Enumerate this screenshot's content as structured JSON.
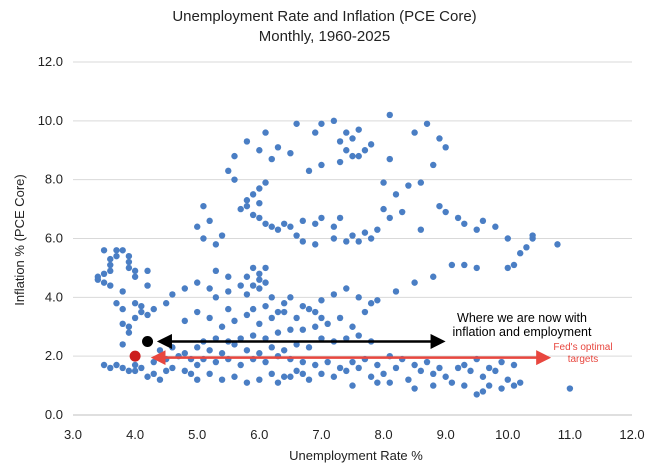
{
  "chart_data": {
    "type": "scatter",
    "title": "Unemployment Rate and Inflation (PCE Core)",
    "subtitle": "Monthly, 1960-2025",
    "xlabel": "Unemployment Rate %",
    "ylabel": "Inflation % (PCE Core)",
    "xlim": [
      3.0,
      12.0
    ],
    "ylim": [
      0.0,
      12.0
    ],
    "x_ticks": [
      "3.0",
      "4.0",
      "5.0",
      "6.0",
      "7.0",
      "8.0",
      "9.0",
      "10.0",
      "11.0",
      "12.0"
    ],
    "y_ticks": [
      "0.0",
      "2.0",
      "4.0",
      "6.0",
      "8.0",
      "10.0",
      "12.0"
    ],
    "grid": "horizontal",
    "colors": {
      "points": "#4a7ec4",
      "current": "#000000",
      "target": "#cc1f1f",
      "target_arrow": "#e8473f",
      "text": "#222222",
      "grid": "#d9d9d9"
    },
    "series": [
      {
        "name": "Monthly observations",
        "points": [
          [
            3.4,
            4.7
          ],
          [
            3.4,
            4.6
          ],
          [
            3.5,
            4.8
          ],
          [
            3.5,
            4.5
          ],
          [
            3.5,
            5.6
          ],
          [
            3.6,
            5.3
          ],
          [
            3.6,
            5.1
          ],
          [
            3.6,
            4.9
          ],
          [
            3.6,
            4.4
          ],
          [
            3.7,
            5.4
          ],
          [
            3.7,
            5.6
          ],
          [
            3.8,
            5.6
          ],
          [
            3.9,
            5.4
          ],
          [
            3.9,
            5.2
          ],
          [
            3.9,
            5.0
          ],
          [
            3.8,
            4.2
          ],
          [
            3.7,
            3.8
          ],
          [
            3.8,
            3.6
          ],
          [
            3.8,
            3.1
          ],
          [
            3.9,
            3.0
          ],
          [
            3.9,
            2.8
          ],
          [
            3.8,
            2.4
          ],
          [
            4.0,
            3.3
          ],
          [
            4.1,
            3.5
          ],
          [
            4.0,
            4.9
          ],
          [
            4.0,
            4.7
          ],
          [
            4.2,
            4.9
          ],
          [
            4.2,
            4.4
          ],
          [
            3.5,
            1.7
          ],
          [
            3.6,
            1.6
          ],
          [
            3.7,
            1.7
          ],
          [
            3.8,
            1.6
          ],
          [
            3.9,
            1.5
          ],
          [
            4.0,
            1.7
          ],
          [
            4.0,
            1.5
          ],
          [
            4.1,
            1.6
          ],
          [
            4.2,
            1.3
          ],
          [
            4.3,
            1.4
          ],
          [
            4.4,
            1.2
          ],
          [
            4.5,
            1.5
          ],
          [
            4.6,
            1.6
          ],
          [
            4.8,
            1.5
          ],
          [
            4.9,
            1.4
          ],
          [
            5.0,
            1.2
          ],
          [
            5.2,
            1.4
          ],
          [
            5.4,
            1.2
          ],
          [
            5.6,
            1.3
          ],
          [
            5.8,
            1.1
          ],
          [
            6.0,
            1.2
          ],
          [
            6.2,
            1.4
          ],
          [
            6.4,
            1.3
          ],
          [
            6.6,
            1.5
          ],
          [
            6.8,
            1.2
          ],
          [
            7.0,
            1.4
          ],
          [
            7.2,
            1.3
          ],
          [
            7.4,
            1.5
          ],
          [
            7.6,
            1.6
          ],
          [
            7.8,
            1.3
          ],
          [
            8.0,
            1.4
          ],
          [
            8.2,
            1.6
          ],
          [
            8.4,
            1.2
          ],
          [
            8.6,
            1.5
          ],
          [
            8.8,
            1.4
          ],
          [
            9.0,
            1.3
          ],
          [
            9.2,
            1.6
          ],
          [
            9.4,
            1.5
          ],
          [
            9.6,
            1.3
          ],
          [
            9.8,
            1.5
          ],
          [
            10.0,
            1.2
          ],
          [
            10.2,
            1.1
          ],
          [
            11.0,
            0.9
          ],
          [
            4.3,
            1.8
          ],
          [
            4.5,
            1.9
          ],
          [
            4.7,
            2.0
          ],
          [
            4.9,
            1.9
          ],
          [
            5.0,
            1.7
          ],
          [
            5.1,
            1.9
          ],
          [
            5.3,
            1.8
          ],
          [
            5.5,
            1.9
          ],
          [
            5.7,
            1.7
          ],
          [
            5.9,
            1.9
          ],
          [
            6.1,
            1.8
          ],
          [
            6.3,
            2.0
          ],
          [
            6.5,
            1.9
          ],
          [
            6.7,
            1.8
          ],
          [
            6.9,
            1.7
          ],
          [
            7.1,
            1.8
          ],
          [
            7.3,
            1.6
          ],
          [
            7.5,
            1.8
          ],
          [
            7.7,
            1.9
          ],
          [
            7.9,
            1.7
          ],
          [
            8.1,
            2.0
          ],
          [
            8.3,
            1.9
          ],
          [
            8.5,
            1.7
          ],
          [
            8.7,
            1.8
          ],
          [
            8.9,
            1.6
          ],
          [
            9.3,
            1.7
          ],
          [
            9.5,
            1.9
          ],
          [
            9.7,
            1.6
          ],
          [
            9.9,
            1.8
          ],
          [
            10.1,
            1.7
          ],
          [
            4.4,
            2.2
          ],
          [
            4.6,
            2.3
          ],
          [
            4.8,
            2.1
          ],
          [
            5.0,
            2.3
          ],
          [
            5.2,
            2.2
          ],
          [
            5.4,
            2.1
          ],
          [
            5.6,
            2.4
          ],
          [
            5.8,
            2.2
          ],
          [
            6.0,
            2.1
          ],
          [
            6.2,
            2.3
          ],
          [
            6.4,
            2.2
          ],
          [
            6.6,
            2.4
          ],
          [
            6.8,
            2.3
          ],
          [
            7.0,
            2.6
          ],
          [
            7.2,
            2.5
          ],
          [
            7.4,
            2.6
          ],
          [
            7.6,
            2.7
          ],
          [
            7.8,
            2.5
          ],
          [
            5.1,
            2.5
          ],
          [
            5.3,
            2.6
          ],
          [
            5.5,
            2.5
          ],
          [
            5.7,
            2.6
          ],
          [
            5.9,
            2.7
          ],
          [
            6.1,
            2.6
          ],
          [
            6.3,
            2.8
          ],
          [
            6.5,
            2.9
          ],
          [
            6.7,
            2.9
          ],
          [
            6.9,
            3.0
          ],
          [
            7.1,
            3.1
          ],
          [
            7.3,
            3.3
          ],
          [
            7.5,
            3.0
          ],
          [
            7.7,
            3.5
          ],
          [
            7.9,
            3.9
          ],
          [
            4.0,
            3.8
          ],
          [
            4.1,
            3.7
          ],
          [
            4.2,
            3.4
          ],
          [
            4.3,
            3.6
          ],
          [
            4.5,
            3.8
          ],
          [
            4.6,
            4.1
          ],
          [
            4.8,
            4.3
          ],
          [
            5.0,
            4.5
          ],
          [
            5.2,
            4.3
          ],
          [
            5.3,
            4.0
          ],
          [
            5.5,
            4.2
          ],
          [
            5.7,
            4.4
          ],
          [
            5.8,
            4.1
          ],
          [
            6.0,
            4.3
          ],
          [
            6.2,
            4.0
          ],
          [
            6.4,
            3.8
          ],
          [
            6.5,
            4.0
          ],
          [
            6.7,
            3.7
          ],
          [
            6.9,
            3.5
          ],
          [
            7.0,
            3.9
          ],
          [
            7.2,
            4.1
          ],
          [
            7.4,
            4.3
          ],
          [
            7.6,
            4.0
          ],
          [
            7.8,
            3.8
          ],
          [
            5.2,
            3.3
          ],
          [
            5.4,
            3.0
          ],
          [
            5.6,
            3.2
          ],
          [
            5.8,
            3.4
          ],
          [
            6.0,
            3.1
          ],
          [
            6.2,
            3.3
          ],
          [
            6.4,
            3.5
          ],
          [
            6.6,
            3.3
          ],
          [
            6.8,
            3.6
          ],
          [
            7.0,
            3.3
          ],
          [
            5.5,
            3.6
          ],
          [
            5.9,
            3.6
          ],
          [
            6.1,
            3.7
          ],
          [
            6.3,
            3.5
          ],
          [
            5.0,
            3.5
          ],
          [
            4.8,
            3.2
          ],
          [
            5.9,
            5.0
          ],
          [
            6.0,
            4.8
          ],
          [
            6.1,
            5.0
          ],
          [
            6.0,
            4.6
          ],
          [
            5.9,
            4.4
          ],
          [
            6.1,
            4.5
          ],
          [
            5.8,
            4.7
          ],
          [
            5.3,
            4.9
          ],
          [
            5.5,
            4.7
          ],
          [
            8.2,
            4.2
          ],
          [
            8.5,
            4.5
          ],
          [
            8.8,
            4.7
          ],
          [
            9.1,
            5.1
          ],
          [
            9.3,
            5.1
          ],
          [
            9.5,
            5.0
          ],
          [
            10.0,
            5.0
          ],
          [
            10.1,
            5.1
          ],
          [
            10.2,
            5.5
          ],
          [
            10.4,
            6.0
          ],
          [
            10.4,
            6.1
          ],
          [
            10.3,
            5.7
          ],
          [
            10.8,
            5.8
          ],
          [
            10.0,
            6.0
          ],
          [
            9.8,
            6.4
          ],
          [
            9.6,
            6.6
          ],
          [
            9.5,
            6.3
          ],
          [
            9.3,
            6.5
          ],
          [
            8.6,
            6.3
          ],
          [
            8.3,
            6.9
          ],
          [
            8.1,
            6.7
          ],
          [
            8.0,
            7.0
          ],
          [
            8.2,
            7.5
          ],
          [
            8.4,
            7.8
          ],
          [
            8.6,
            7.9
          ],
          [
            8.8,
            8.5
          ],
          [
            8.9,
            7.1
          ],
          [
            9.0,
            6.9
          ],
          [
            9.2,
            6.7
          ],
          [
            8.0,
            7.9
          ],
          [
            8.1,
            8.7
          ],
          [
            8.5,
            9.6
          ],
          [
            8.7,
            9.9
          ],
          [
            8.9,
            9.4
          ],
          [
            9.0,
            9.1
          ],
          [
            8.1,
            10.2
          ],
          [
            7.8,
            9.2
          ],
          [
            7.7,
            9.0
          ],
          [
            7.6,
            8.8
          ],
          [
            7.5,
            9.4
          ],
          [
            7.6,
            9.7
          ],
          [
            7.4,
            9.6
          ],
          [
            7.3,
            9.3
          ],
          [
            7.4,
            9.0
          ],
          [
            7.5,
            8.8
          ],
          [
            7.3,
            8.6
          ],
          [
            7.2,
            10.0
          ],
          [
            7.0,
            9.9
          ],
          [
            6.9,
            9.6
          ],
          [
            6.6,
            9.9
          ],
          [
            6.1,
            9.6
          ],
          [
            6.0,
            9.0
          ],
          [
            6.2,
            8.7
          ],
          [
            5.8,
            9.3
          ],
          [
            5.6,
            8.8
          ],
          [
            5.5,
            8.3
          ],
          [
            5.6,
            8.0
          ],
          [
            6.3,
            9.1
          ],
          [
            6.5,
            8.9
          ],
          [
            6.8,
            8.3
          ],
          [
            7.0,
            8.5
          ],
          [
            5.1,
            7.1
          ],
          [
            5.2,
            6.6
          ],
          [
            5.0,
            6.4
          ],
          [
            5.1,
            6.0
          ],
          [
            5.3,
            5.8
          ],
          [
            5.4,
            6.1
          ],
          [
            5.7,
            7.0
          ],
          [
            5.8,
            7.3
          ],
          [
            5.9,
            7.5
          ],
          [
            6.0,
            7.7
          ],
          [
            6.1,
            7.9
          ],
          [
            6.0,
            7.2
          ],
          [
            5.8,
            7.1
          ],
          [
            5.9,
            6.8
          ],
          [
            6.0,
            6.7
          ],
          [
            6.1,
            6.5
          ],
          [
            6.3,
            6.3
          ],
          [
            6.5,
            6.4
          ],
          [
            6.7,
            6.6
          ],
          [
            6.9,
            6.5
          ],
          [
            7.0,
            6.7
          ],
          [
            7.2,
            6.4
          ],
          [
            7.3,
            6.7
          ],
          [
            7.5,
            6.1
          ],
          [
            7.7,
            6.2
          ],
          [
            7.8,
            6.0
          ],
          [
            7.9,
            6.3
          ],
          [
            7.6,
            5.9
          ],
          [
            7.4,
            5.9
          ],
          [
            7.2,
            6.0
          ],
          [
            6.9,
            5.8
          ],
          [
            6.7,
            5.9
          ],
          [
            6.6,
            6.1
          ],
          [
            6.4,
            6.5
          ],
          [
            6.2,
            6.4
          ],
          [
            9.5,
            0.7
          ],
          [
            9.6,
            0.8
          ],
          [
            9.7,
            1.0
          ],
          [
            9.9,
            0.9
          ],
          [
            10.1,
            1.0
          ],
          [
            8.5,
            0.9
          ],
          [
            8.8,
            1.0
          ],
          [
            9.1,
            1.1
          ],
          [
            9.3,
            1.0
          ],
          [
            7.5,
            1.0
          ],
          [
            7.9,
            1.1
          ],
          [
            8.1,
            1.1
          ],
          [
            6.5,
            1.3
          ],
          [
            6.7,
            1.4
          ],
          [
            6.3,
            1.1
          ]
        ]
      }
    ],
    "highlights": [
      {
        "name": "current",
        "x": 4.2,
        "y": 2.5
      },
      {
        "name": "target",
        "x": 4.0,
        "y": 2.0
      }
    ],
    "annotations": {
      "current_line1": "Where we are now with",
      "current_line2": "inflation and employment",
      "target_line1": "Fed's optimal",
      "target_line2": "targets",
      "current_arrow_from": [
        4.4,
        2.5
      ],
      "current_arrow_to": [
        8.95,
        2.5
      ],
      "target_arrow_from": [
        4.3,
        1.95
      ],
      "target_arrow_to": [
        10.65,
        1.95
      ]
    }
  }
}
